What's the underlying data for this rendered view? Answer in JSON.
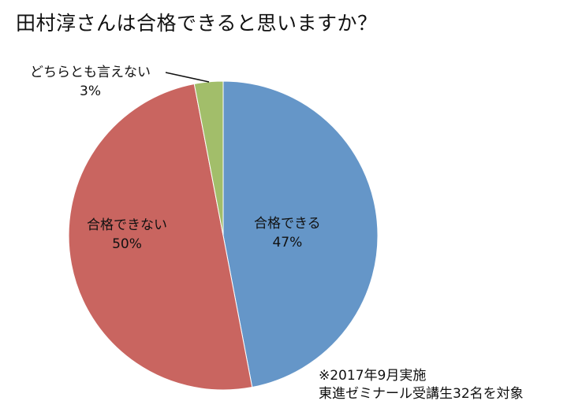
{
  "title": "田村淳さんは合格できると思いますか？",
  "note": {
    "line1": "※2017年9月実施",
    "line2": "東進ゼミナール受講生32名を対象"
  },
  "slices": [
    {
      "label": "合格できる",
      "pct_text": "47%",
      "color": "#6596c8"
    },
    {
      "label": "合格できない",
      "pct_text": "50%",
      "color": "#c96560"
    },
    {
      "label": "どちらとも言えない",
      "pct_text": "3%",
      "color": "#a2be6a"
    }
  ],
  "chart_data": {
    "type": "pie",
    "title": "田村淳さんは合格できると思いますか？",
    "categories": [
      "合格できる",
      "合格できない",
      "どちらとも言えない"
    ],
    "values": [
      47,
      50,
      3
    ],
    "unit": "%",
    "colors": [
      "#6596c8",
      "#c96560",
      "#a2be6a"
    ],
    "annotations": [
      "※2017年9月実施",
      "東進ゼミナール受講生32名を対象"
    ],
    "legend": "none (data labels on slices)"
  }
}
